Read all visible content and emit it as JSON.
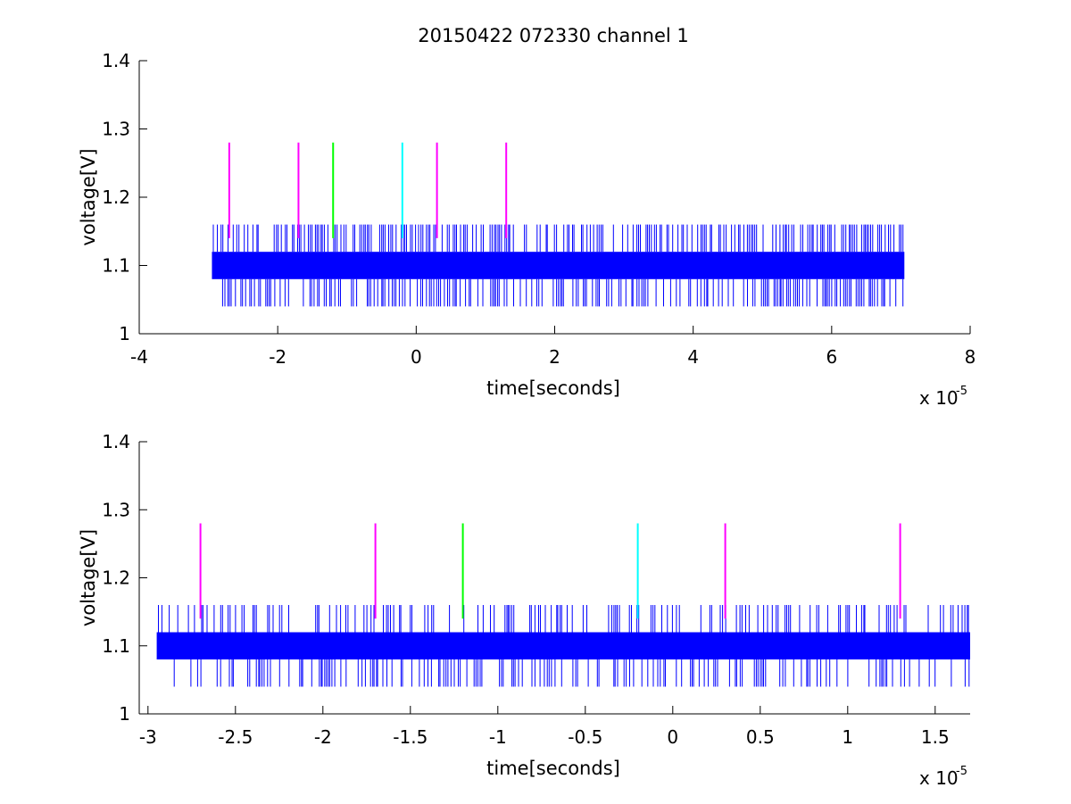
{
  "figure": {
    "title": "20150422 072330 channel 1"
  },
  "chart_data": [
    {
      "type": "line",
      "title": "20150422 072330 channel 1",
      "xlabel": "time[seconds]",
      "ylabel": "voltage[V]",
      "x_multiplier_label": "x 10",
      "x_multiplier_exponent": "-5",
      "xlim": [
        -4,
        8
      ],
      "ylim": [
        1,
        1.4
      ],
      "xticks": [
        -4,
        -2,
        0,
        2,
        4,
        6,
        8
      ],
      "xtick_labels": [
        "-4",
        "-2",
        "0",
        "2",
        "4",
        "6",
        "8"
      ],
      "yticks": [
        1,
        1.1,
        1.2,
        1.3,
        1.4
      ],
      "ytick_labels": [
        "1",
        "1.1",
        "1.2",
        "1.3",
        "1.4"
      ],
      "grid": false,
      "signal": {
        "name": "voltage",
        "color": "#0000ff",
        "x_range": [
          -2.95,
          7.05
        ],
        "band": [
          1.08,
          1.12
        ],
        "spike_high": 1.16,
        "spike_low": 1.04
      },
      "markers": [
        {
          "x": -2.7,
          "color": "#ff00ff",
          "y_range": [
            1.14,
            1.28
          ]
        },
        {
          "x": -1.7,
          "color": "#ff00ff",
          "y_range": [
            1.14,
            1.28
          ]
        },
        {
          "x": -1.2,
          "color": "#00ff00",
          "y_range": [
            1.14,
            1.28
          ]
        },
        {
          "x": -0.2,
          "color": "#00ffff",
          "y_range": [
            1.14,
            1.28
          ]
        },
        {
          "x": 0.3,
          "color": "#ff00ff",
          "y_range": [
            1.14,
            1.28
          ]
        },
        {
          "x": 1.3,
          "color": "#ff00ff",
          "y_range": [
            1.14,
            1.28
          ]
        }
      ]
    },
    {
      "type": "line",
      "title": "",
      "xlabel": "time[seconds]",
      "ylabel": "voltage[V]",
      "x_multiplier_label": "x 10",
      "x_multiplier_exponent": "-5",
      "xlim": [
        -3.05,
        1.7
      ],
      "ylim": [
        1,
        1.4
      ],
      "xticks": [
        -3,
        -2.5,
        -2,
        -1.5,
        -1,
        -0.5,
        0,
        0.5,
        1,
        1.5
      ],
      "xtick_labels": [
        "-3",
        "-2.5",
        "-2",
        "-1.5",
        "-1",
        "-0.5",
        "0",
        "0.5",
        "1",
        "1.5"
      ],
      "yticks": [
        1,
        1.1,
        1.2,
        1.3,
        1.4
      ],
      "ytick_labels": [
        "1",
        "1.1",
        "1.2",
        "1.3",
        "1.4"
      ],
      "grid": false,
      "signal": {
        "name": "voltage",
        "color": "#0000ff",
        "x_range": [
          -2.95,
          1.7
        ],
        "band": [
          1.08,
          1.12
        ],
        "spike_high": 1.16,
        "spike_low": 1.04
      },
      "markers": [
        {
          "x": -2.7,
          "color": "#ff00ff",
          "y_range": [
            1.14,
            1.28
          ]
        },
        {
          "x": -1.7,
          "color": "#ff00ff",
          "y_range": [
            1.14,
            1.28
          ]
        },
        {
          "x": -1.2,
          "color": "#00ff00",
          "y_range": [
            1.14,
            1.28
          ]
        },
        {
          "x": -0.2,
          "color": "#00ffff",
          "y_range": [
            1.14,
            1.28
          ]
        },
        {
          "x": 0.3,
          "color": "#ff00ff",
          "y_range": [
            1.14,
            1.28
          ]
        },
        {
          "x": 1.3,
          "color": "#ff00ff",
          "y_range": [
            1.14,
            1.28
          ]
        }
      ]
    }
  ]
}
